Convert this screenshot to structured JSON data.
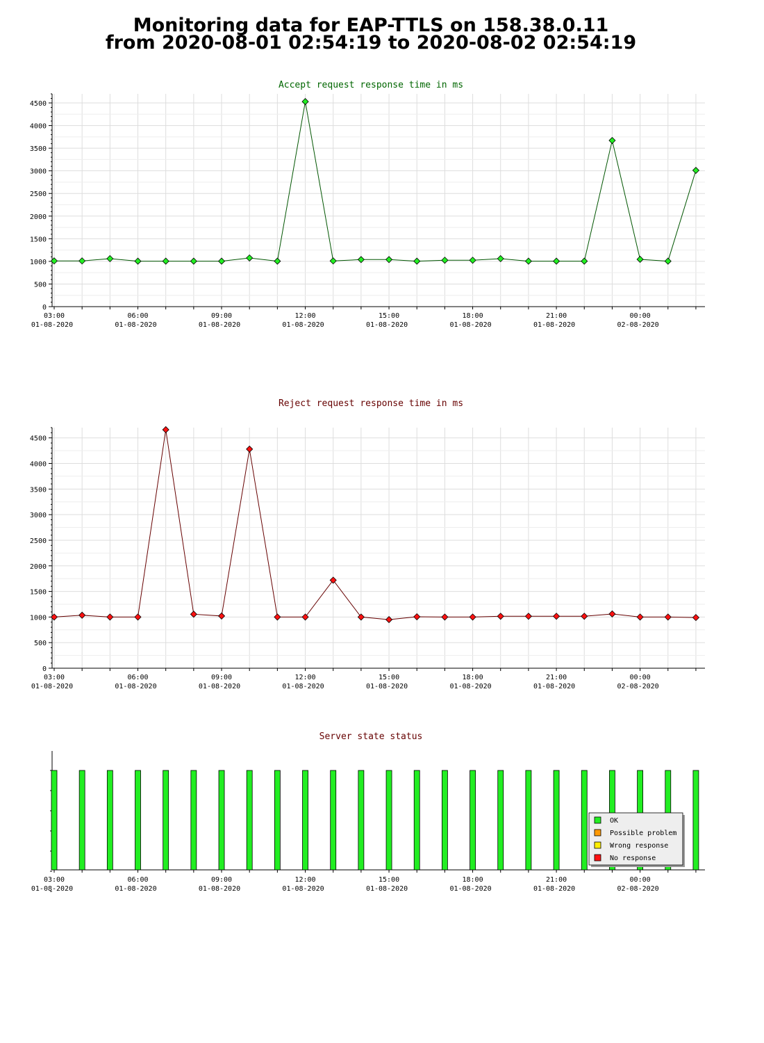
{
  "page": {
    "title_line1": "Monitoring data for EAP-TTLS on 158.38.0.11",
    "title_line2": "from 2020-08-01 02:54:19 to 2020-08-02 02:54:19"
  },
  "colors": {
    "accept_line": "#005500",
    "accept_marker": "#22ee22",
    "reject_line": "#660000",
    "reject_marker": "#ff1111",
    "ok": "#22ee22",
    "possible_problem": "#ff9900",
    "wrong_response": "#ffee00",
    "no_response": "#ff1111",
    "grid": "#dddddd",
    "accept_title": "#006600",
    "reject_title": "#660000"
  },
  "chart_data": [
    {
      "id": "accept",
      "type": "line",
      "title": "Accept request response time in ms",
      "x_hours": [
        3,
        4,
        5,
        6,
        7,
        8,
        9,
        10,
        11,
        12,
        13,
        14,
        15,
        16,
        17,
        18,
        19,
        20,
        21,
        22,
        23,
        24,
        25,
        26
      ],
      "values": [
        1010,
        1010,
        1060,
        1005,
        1005,
        1005,
        1005,
        1075,
        1005,
        4530,
        1010,
        1040,
        1040,
        1005,
        1025,
        1025,
        1060,
        1005,
        1005,
        1005,
        3670,
        1045,
        1005,
        3010
      ],
      "ylim": [
        0,
        4700
      ],
      "yticks": [
        0,
        500,
        1000,
        1500,
        2000,
        2500,
        3000,
        3500,
        4000,
        4500
      ],
      "xlim": [
        3,
        26.4
      ],
      "xticks": [
        {
          "hour": 3,
          "time": "03:00",
          "date": "01-08-2020"
        },
        {
          "hour": 6,
          "time": "06:00",
          "date": "01-08-2020"
        },
        {
          "hour": 9,
          "time": "09:00",
          "date": "01-08-2020"
        },
        {
          "hour": 12,
          "time": "12:00",
          "date": "01-08-2020"
        },
        {
          "hour": 15,
          "time": "15:00",
          "date": "01-08-2020"
        },
        {
          "hour": 18,
          "time": "18:00",
          "date": "01-08-2020"
        },
        {
          "hour": 21,
          "time": "21:00",
          "date": "01-08-2020"
        },
        {
          "hour": 24,
          "time": "00:00",
          "date": "02-08-2020"
        }
      ],
      "grid": true
    },
    {
      "id": "reject",
      "type": "line",
      "title": "Reject request response time in ms",
      "x_hours": [
        3,
        4,
        5,
        6,
        7,
        8,
        9,
        10,
        11,
        12,
        13,
        14,
        15,
        16,
        17,
        18,
        19,
        20,
        21,
        22,
        23,
        24,
        25,
        26
      ],
      "values": [
        1000,
        1035,
        1000,
        1000,
        4660,
        1055,
        1020,
        4280,
        1000,
        1000,
        1720,
        1000,
        950,
        1005,
        1000,
        1000,
        1015,
        1015,
        1015,
        1015,
        1060,
        1000,
        1000,
        990
      ],
      "ylim": [
        0,
        4700
      ],
      "yticks": [
        0,
        500,
        1000,
        1500,
        2000,
        2500,
        3000,
        3500,
        4000,
        4500
      ],
      "xlim": [
        3,
        26.4
      ],
      "xticks": [
        {
          "hour": 3,
          "time": "03:00",
          "date": "01-08-2020"
        },
        {
          "hour": 6,
          "time": "06:00",
          "date": "01-08-2020"
        },
        {
          "hour": 9,
          "time": "09:00",
          "date": "01-08-2020"
        },
        {
          "hour": 12,
          "time": "12:00",
          "date": "01-08-2020"
        },
        {
          "hour": 15,
          "time": "15:00",
          "date": "01-08-2020"
        },
        {
          "hour": 18,
          "time": "18:00",
          "date": "01-08-2020"
        },
        {
          "hour": 21,
          "time": "21:00",
          "date": "01-08-2020"
        },
        {
          "hour": 24,
          "time": "00:00",
          "date": "02-08-2020"
        }
      ],
      "grid": true
    },
    {
      "id": "status",
      "type": "bar",
      "title": "Server state status",
      "x_hours": [
        3,
        4,
        5,
        6,
        7,
        8,
        9,
        10,
        11,
        12,
        13,
        14,
        15,
        16,
        17,
        18,
        19,
        20,
        21,
        22,
        23,
        24,
        25,
        26
      ],
      "states": [
        "OK",
        "OK",
        "OK",
        "OK",
        "OK",
        "OK",
        "OK",
        "OK",
        "OK",
        "OK",
        "OK",
        "OK",
        "OK",
        "OK",
        "OK",
        "OK",
        "OK",
        "OK",
        "OK",
        "OK",
        "OK",
        "OK",
        "OK",
        "OK"
      ],
      "xlim": [
        3,
        26.4
      ],
      "xticks": [
        {
          "hour": 3,
          "time": "03:00",
          "date": "01-08-2020"
        },
        {
          "hour": 6,
          "time": "06:00",
          "date": "01-08-2020"
        },
        {
          "hour": 9,
          "time": "09:00",
          "date": "01-08-2020"
        },
        {
          "hour": 12,
          "time": "12:00",
          "date": "01-08-2020"
        },
        {
          "hour": 15,
          "time": "15:00",
          "date": "01-08-2020"
        },
        {
          "hour": 18,
          "time": "18:00",
          "date": "01-08-2020"
        },
        {
          "hour": 21,
          "time": "21:00",
          "date": "01-08-2020"
        },
        {
          "hour": 24,
          "time": "00:00",
          "date": "02-08-2020"
        }
      ],
      "legend": {
        "position": "bottom-right",
        "entries": [
          {
            "label": "OK",
            "color": "#22ee22"
          },
          {
            "label": "Possible problem",
            "color": "#ff9900"
          },
          {
            "label": "Wrong response",
            "color": "#ffee00"
          },
          {
            "label": "No response",
            "color": "#ff1111"
          }
        ]
      },
      "grid": false
    }
  ]
}
